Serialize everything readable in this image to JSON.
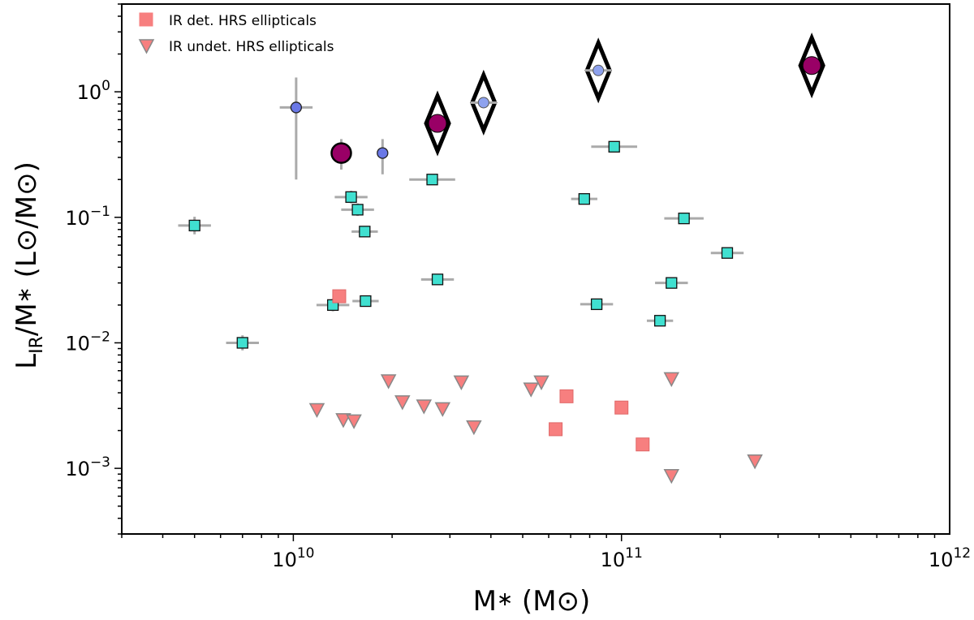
{
  "chart_data": {
    "type": "scatter",
    "xscale": "log",
    "yscale": "log",
    "xlim": [
      3000000000.0,
      1000000000000.0
    ],
    "ylim": [
      0.0003,
      5
    ],
    "xlabel": "M∗ (M⊙)",
    "ylabel": "L_IR/M∗ (L⊙/M⊙)",
    "colors": {
      "cyan": "#40e0d0",
      "blue": "#6a78e6",
      "lightblue": "#8ea2ee",
      "magenta": "#990066",
      "salmon": "#f77f7f",
      "errorbar": "#aaaaaa"
    },
    "xticks": [
      {
        "value": 10000000000.0,
        "base": "10",
        "exp": "10"
      },
      {
        "value": 100000000000.0,
        "base": "10",
        "exp": "11"
      },
      {
        "value": 1000000000000.0,
        "base": "10",
        "exp": "12"
      }
    ],
    "yticks": [
      {
        "value": 1,
        "base": "10",
        "exp": "0"
      },
      {
        "value": 0.1,
        "base": "10",
        "exp": "−1"
      },
      {
        "value": 0.01,
        "base": "10",
        "exp": "−2"
      },
      {
        "value": 0.001,
        "base": "10",
        "exp": "−3"
      }
    ],
    "legend": {
      "location": "upper left",
      "entries": [
        {
          "label": "IR det. HRS ellipticals",
          "marker": "square"
        },
        {
          "label": "IR undet. HRS ellipticals",
          "marker": "triangle-down"
        }
      ]
    },
    "series": [
      {
        "name": "cyan-squares",
        "marker": "square",
        "points": [
          {
            "x": 5000000000.0,
            "y": 0.086,
            "xerr": 0.05,
            "yerr": 0.07
          },
          {
            "x": 7000000000.0,
            "y": 0.01,
            "xerr": 0.05,
            "yerr": 0.06
          },
          {
            "x": 13200000000.0,
            "y": 0.02,
            "xerr": 0.05,
            "yerr": 0.05
          },
          {
            "x": 15000000000.0,
            "y": 0.145,
            "xerr": 0.05,
            "yerr": 0.05
          },
          {
            "x": 15700000000.0,
            "y": 0.115,
            "xerr": 0.05,
            "yerr": 0.05
          },
          {
            "x": 16500000000.0,
            "y": 0.077,
            "xerr": 0.04,
            "yerr": 0.04
          },
          {
            "x": 16600000000.0,
            "y": 0.0215,
            "xerr": 0.04,
            "yerr": 0.04
          },
          {
            "x": 26500000000.0,
            "y": 0.2,
            "xerr": 0.07,
            "yerr": 0.04
          },
          {
            "x": 27500000000.0,
            "y": 0.032,
            "xerr": 0.05,
            "yerr": 0.04
          },
          {
            "x": 77000000000.0,
            "y": 0.14,
            "xerr": 0.04,
            "yerr": 0.04
          },
          {
            "x": 84000000000.0,
            "y": 0.0203,
            "xerr": 0.05,
            "yerr": 0.03
          },
          {
            "x": 95000000000.0,
            "y": 0.365,
            "xerr": 0.07,
            "yerr": 0.04
          },
          {
            "x": 131000000000.0,
            "y": 0.015,
            "xerr": 0.04,
            "yerr": 0.04
          },
          {
            "x": 142000000000.0,
            "y": 0.03,
            "xerr": 0.05,
            "yerr": 0.04
          },
          {
            "x": 155000000000.0,
            "y": 0.098,
            "xerr": 0.06,
            "yerr": 0.04
          },
          {
            "x": 210000000000.0,
            "y": 0.052,
            "xerr": 0.05,
            "yerr": 0.04
          }
        ]
      },
      {
        "name": "blue-circles",
        "marker": "circle",
        "points": [
          {
            "x": 10200000000.0,
            "y": 0.75,
            "xerr": 0.05,
            "yerr_lo": 0.2,
            "yerr_hi": 1.3
          },
          {
            "x": 18700000000.0,
            "y": 0.325,
            "xerr": 0.0,
            "yerr_lo": 0.22,
            "yerr_hi": 0.42
          }
        ]
      },
      {
        "name": "magenta-circles",
        "marker": "circle",
        "points": [
          {
            "x": 14000000000.0,
            "y": 0.325,
            "yerr_lo": 0.24,
            "yerr_hi": 0.42
          },
          {
            "x": 27500000000.0,
            "y": 0.56
          },
          {
            "x": 380000000000.0,
            "y": 1.62
          }
        ]
      },
      {
        "name": "black-diamonds",
        "marker": "diamond",
        "points": [
          {
            "x": 27500000000.0,
            "y": 0.56
          },
          {
            "x": 38000000000.0,
            "y": 0.82
          },
          {
            "x": 85000000000.0,
            "y": 1.48
          },
          {
            "x": 380000000000.0,
            "y": 1.62
          }
        ]
      },
      {
        "name": "lightblue-circles",
        "marker": "circle",
        "points": [
          {
            "x": 38000000000.0,
            "y": 0.82,
            "xerr": 0.04
          },
          {
            "x": 85000000000.0,
            "y": 1.48,
            "xerr": 0.04
          }
        ]
      },
      {
        "name": "IR det. HRS ellipticals",
        "marker": "square",
        "points": [
          {
            "x": 13800000000.0,
            "y": 0.0235
          },
          {
            "x": 63000000000.0,
            "y": 0.00205
          },
          {
            "x": 68000000000.0,
            "y": 0.00375
          },
          {
            "x": 100000000000.0,
            "y": 0.00305
          },
          {
            "x": 116000000000.0,
            "y": 0.00155
          }
        ]
      },
      {
        "name": "IR undet. HRS ellipticals",
        "marker": "triangle-down",
        "points": [
          {
            "x": 11800000000.0,
            "y": 0.00295
          },
          {
            "x": 14200000000.0,
            "y": 0.00245
          },
          {
            "x": 15300000000.0,
            "y": 0.0024
          },
          {
            "x": 19500000000.0,
            "y": 0.005
          },
          {
            "x": 21500000000.0,
            "y": 0.0034
          },
          {
            "x": 25000000000.0,
            "y": 0.00315
          },
          {
            "x": 28500000000.0,
            "y": 0.003
          },
          {
            "x": 32500000000.0,
            "y": 0.0049
          },
          {
            "x": 35500000000.0,
            "y": 0.00215
          },
          {
            "x": 53000000000.0,
            "y": 0.0043
          },
          {
            "x": 57000000000.0,
            "y": 0.0049
          },
          {
            "x": 142000000000.0,
            "y": 0.0052
          },
          {
            "x": 142000000000.0,
            "y": 0.00088
          },
          {
            "x": 255000000000.0,
            "y": 0.00115
          }
        ]
      }
    ]
  }
}
